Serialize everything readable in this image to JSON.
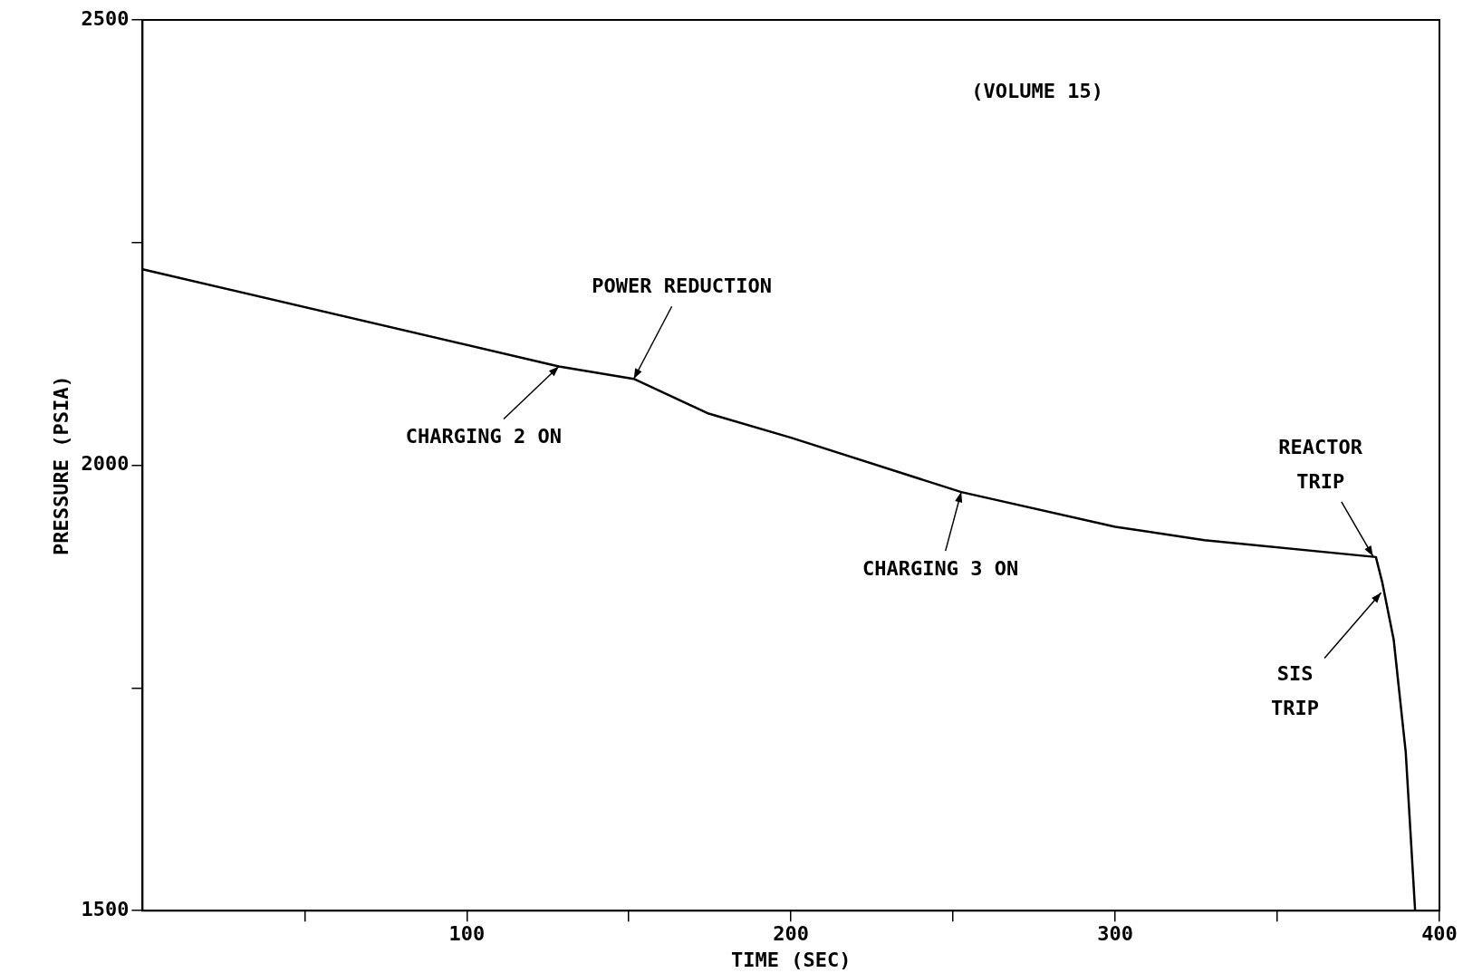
{
  "chart_data": {
    "type": "line",
    "xlabel": "TIME (SEC)",
    "ylabel": "PRESSURE (PSIA)",
    "x": [
      0,
      128.4,
      151.5,
      174.6,
      200,
      252.5,
      300,
      327.5,
      380.4,
      382.4,
      385.9,
      389.6,
      392.5
    ],
    "series": [
      {
        "color": "#000000",
        "values": [
          2220,
          2111,
          2097,
          2058,
          2031,
          1970,
          1931,
          1916,
          1897,
          1868,
          1804,
          1678,
          1500
        ]
      }
    ],
    "xlim": [
      0,
      400
    ],
    "xticks": [
      {
        "value": 50,
        "label": null
      },
      100,
      {
        "value": 150,
        "label": null
      },
      200,
      {
        "value": 250,
        "label": null
      },
      300,
      {
        "value": 350,
        "label": null
      },
      400
    ],
    "ylim": [
      1500,
      2500
    ],
    "yticks": [
      1500,
      {
        "value": 1750,
        "label": null
      },
      2000,
      {
        "value": 2250,
        "label": null
      },
      2500
    ],
    "grid": false,
    "legend": false,
    "marker": "none",
    "line_style": "solid",
    "annotations": [
      "(VOLUME 15)",
      {
        "text": "POWER REDUCTION",
        "x": 151.5,
        "y": 2097
      },
      {
        "text": "CHARGING 2 ON",
        "x": 128.4,
        "y": 2111
      },
      {
        "text": "CHARGING 3 ON",
        "x": 252.5,
        "y": 1970
      },
      {
        "text": "REACTOR\nTRIP",
        "x": 379.5,
        "y": 1898
      },
      {
        "text": "SIS\nTRIP",
        "x": 382,
        "y": 1857
      }
    ]
  }
}
